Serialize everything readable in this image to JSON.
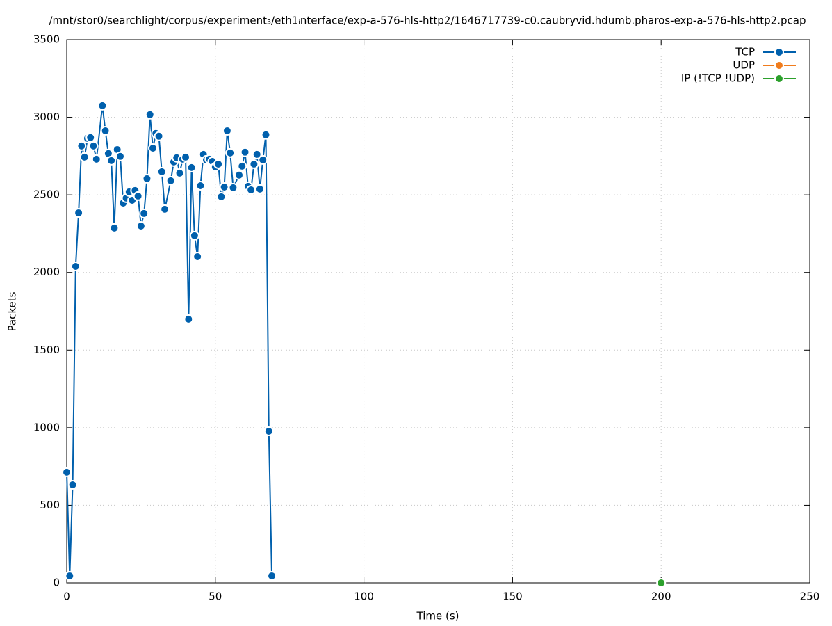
{
  "chart_data": {
    "type": "line",
    "title": "/mnt/stor0/searchlight/corpus/experiment₃/eth1ᵢnterface/exp-a-576-hls-http2/1646717739-c0.caubryvid.hdumb.pharos-exp-a-576-hls-http2.pcap",
    "x_label": "Time (s)",
    "y_label": "Packets",
    "xlim": [
      0,
      250
    ],
    "xticks": [
      0,
      50,
      100,
      150,
      200,
      250
    ],
    "ylim": [
      0,
      3500
    ],
    "yticks": [
      0,
      500,
      1000,
      1500,
      2000,
      2500,
      3000,
      3500
    ],
    "grid": true,
    "legend": "top-right",
    "series": [
      {
        "name": "TCP",
        "color": "#0060ad",
        "x": [
          0,
          1,
          2,
          3,
          4,
          5,
          6,
          7,
          8,
          9,
          10,
          12,
          13,
          14,
          15,
          16,
          17,
          18,
          19,
          20,
          21,
          22,
          23,
          24,
          25,
          26,
          27,
          28,
          29,
          30,
          31,
          32,
          33,
          35,
          36,
          37,
          38,
          39,
          40,
          41,
          42,
          43,
          44,
          45,
          46,
          47,
          48,
          49,
          50,
          51,
          52,
          53,
          54,
          55,
          56,
          58,
          59,
          60,
          61,
          62,
          63,
          64,
          65,
          66,
          67,
          68,
          69
        ],
        "values": [
          713,
          45,
          632,
          2039,
          2384,
          2815,
          2743,
          2864,
          2869,
          2815,
          2730,
          3075,
          2913,
          2766,
          2721,
          2286,
          2792,
          2748,
          2447,
          2479,
          2519,
          2465,
          2528,
          2492,
          2299,
          2380,
          2604,
          3017,
          2801,
          2896,
          2878,
          2649,
          2407,
          2591,
          2712,
          2739,
          2640,
          2730,
          2743,
          1699,
          2676,
          2237,
          2102,
          2559,
          2761,
          2725,
          2730,
          2716,
          2680,
          2698,
          2488,
          2550,
          2913,
          2770,
          2546,
          2627,
          2685,
          2775,
          2555,
          2532,
          2698,
          2761,
          2537,
          2725,
          2887,
          977,
          45
        ]
      },
      {
        "name": "UDP",
        "color": "#f07c1d",
        "x": [],
        "values": []
      },
      {
        "name": "IP (!TCP  !UDP)",
        "color": "#2ca02c",
        "x": [
          200
        ],
        "values": [
          0
        ]
      }
    ]
  }
}
